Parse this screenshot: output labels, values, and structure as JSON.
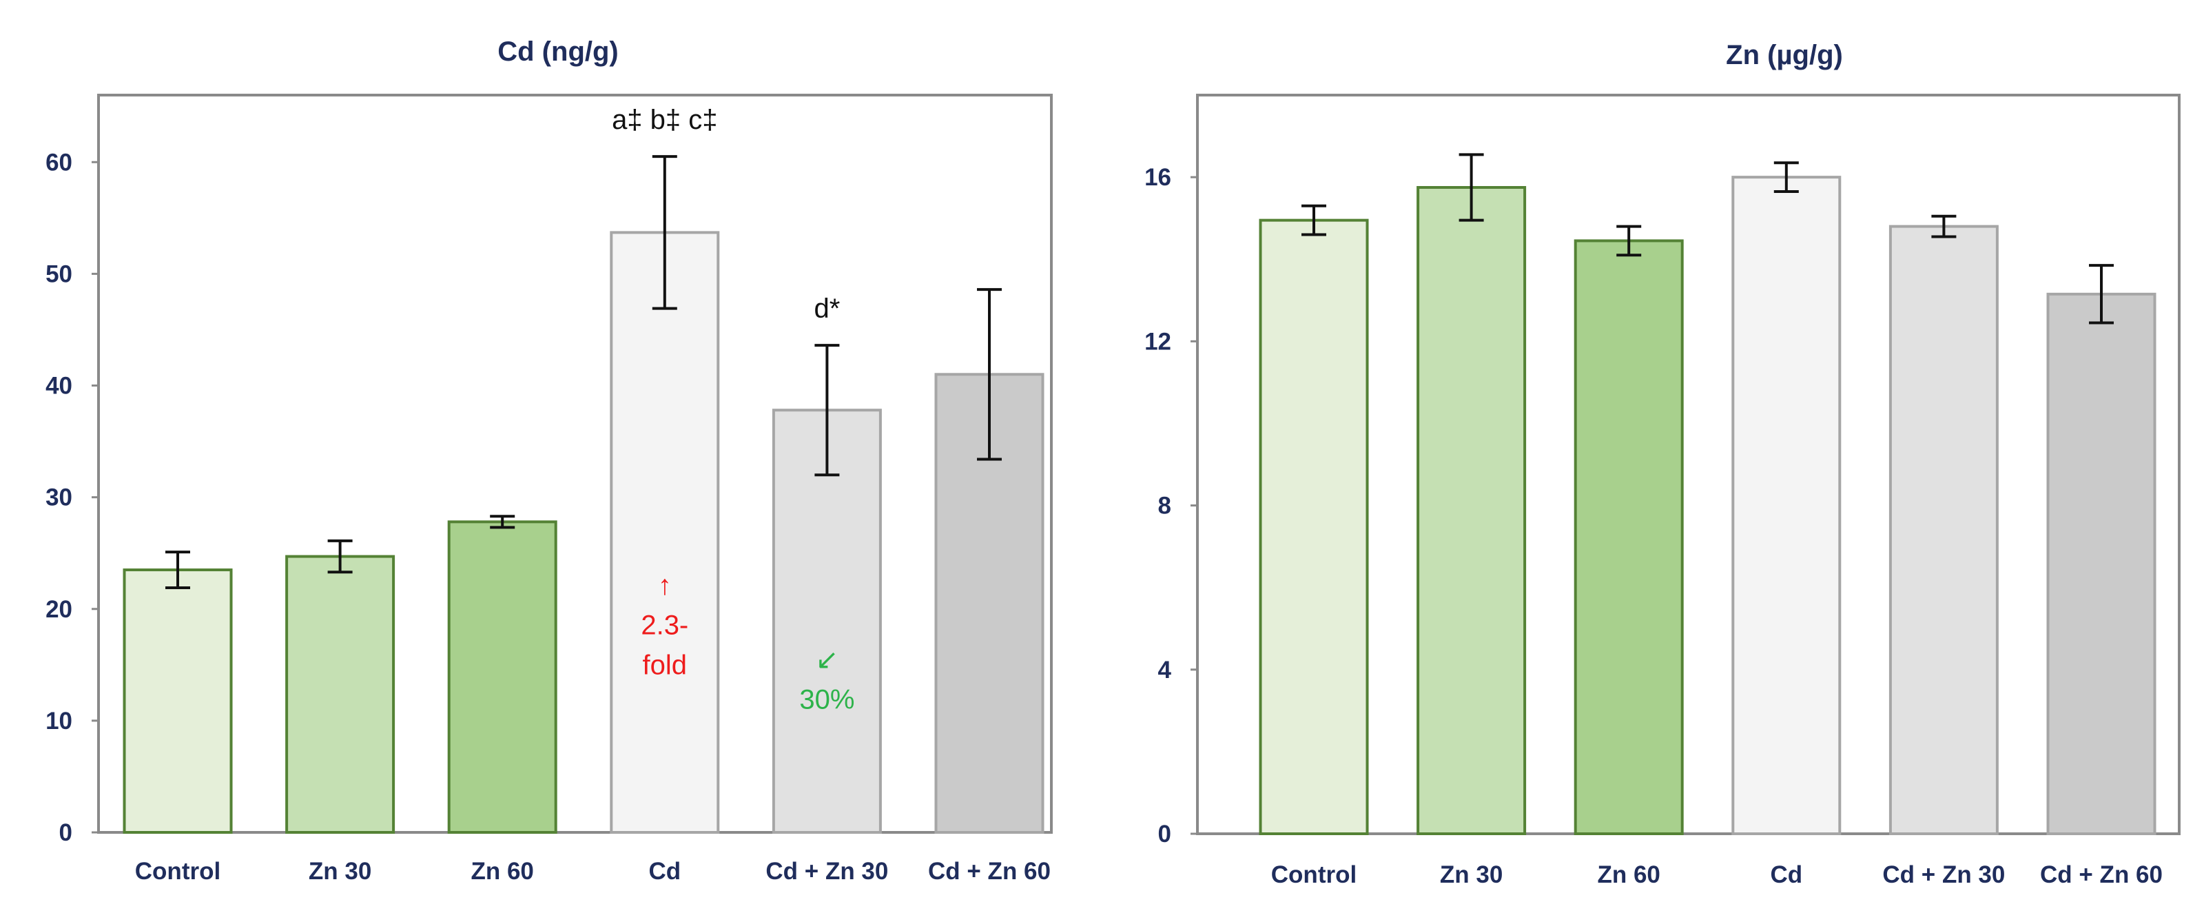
{
  "chart_data": [
    {
      "id": "cd",
      "type": "bar",
      "title": "Cd (ng/g)",
      "xlabel": "",
      "ylabel": "",
      "categories": [
        "Control",
        "Zn 30",
        "Zn 60",
        "Cd",
        "Cd + Zn 30",
        "Cd + Zn 60"
      ],
      "values": [
        23.5,
        24.7,
        27.8,
        53.7,
        37.8,
        41.0
      ],
      "errors": [
        1.6,
        1.4,
        0.5,
        6.8,
        5.8,
        7.6
      ],
      "ylim": [
        0,
        66
      ],
      "yticks": [
        0,
        10,
        20,
        30,
        40,
        50,
        60
      ],
      "grid": false,
      "annotations": [
        {
          "category": "Cd",
          "lines": [
            "a‡ b‡ c‡"
          ],
          "position": "above-bar",
          "color": "#111111"
        },
        {
          "category": "Cd + Zn 30",
          "lines": [
            "d*"
          ],
          "position": "above-bar",
          "color": "#111111"
        },
        {
          "category": "Cd",
          "lines": [
            "↑",
            "2.3-",
            "fold"
          ],
          "position": "inside-bar",
          "color": "#ee1c1c"
        },
        {
          "category": "Cd + Zn 30",
          "lines": [
            "↙",
            "30%"
          ],
          "position": "inside-bar",
          "color": "#2db34a"
        }
      ]
    },
    {
      "id": "zn",
      "type": "bar",
      "title": "Zn (µg/g)",
      "xlabel": "",
      "ylabel": "",
      "categories": [
        "Control",
        "Zn 30",
        "Zn 60",
        "Cd",
        "Cd + Zn 30",
        "Cd + Zn 60"
      ],
      "values": [
        14.95,
        15.75,
        14.45,
        16.0,
        14.8,
        13.15
      ],
      "errors": [
        0.35,
        0.8,
        0.35,
        0.35,
        0.25,
        0.7
      ],
      "ylim": [
        0,
        18
      ],
      "yticks": [
        0,
        4,
        8,
        12,
        16
      ],
      "grid": false,
      "annotations": []
    }
  ],
  "bar_colors": {
    "fills": [
      "#e5efd9",
      "#c5e0b3",
      "#a8d08d",
      "#f4f4f4",
      "#e1e1e1",
      "#cacaca"
    ],
    "strokes": [
      "#548235",
      "#548235",
      "#548235",
      "#a6a6a6",
      "#a6a6a6",
      "#a6a6a6"
    ]
  }
}
